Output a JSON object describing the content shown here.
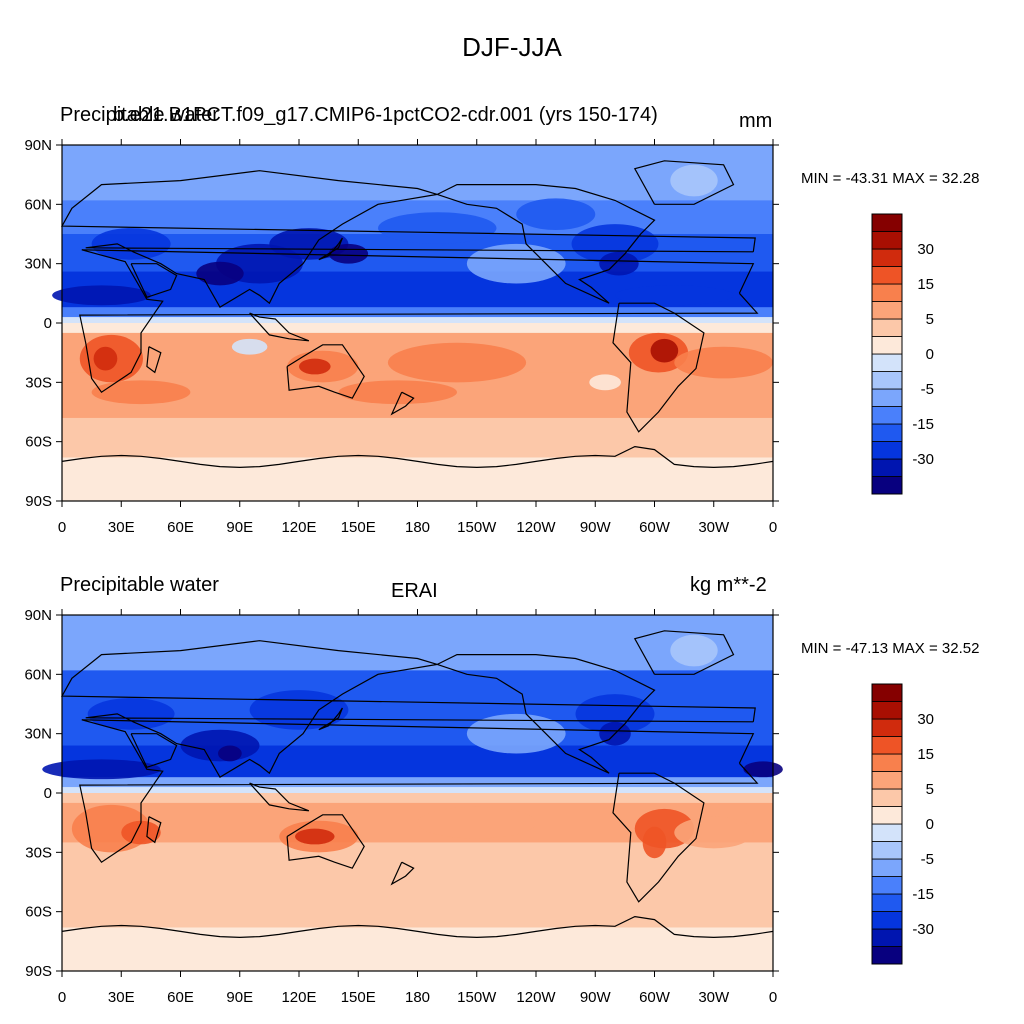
{
  "figure": {
    "title": "DJF-JJA"
  },
  "palette": [
    "#08007f",
    "#0015b0",
    "#0535de",
    "#1f59f0",
    "#4a80fb",
    "#7ba6fc",
    "#a8c6fb",
    "#d3e3fa",
    "#fde9da",
    "#fcc8a9",
    "#fba479",
    "#f8804d",
    "#ee5426",
    "#d02b0d",
    "#a80f02",
    "#850000"
  ],
  "colorbar_levels": [
    "-30",
    "-15",
    "-5",
    "0",
    "5",
    "15",
    "30"
  ],
  "panels": [
    {
      "left_label": "Precipitable water",
      "center_label": "b.e21.B1PCT.f09_g17.CMIP6-1pctCO2-cdr.001 (yrs 150-174)",
      "right_label": "mm",
      "stats": "MIN = -43.31 MAX =  32.28",
      "lat_ticks": [
        "90N",
        "60N",
        "30N",
        "0",
        "30S",
        "60S",
        "90S"
      ],
      "lon_ticks": [
        "0",
        "30E",
        "60E",
        "90E",
        "120E",
        "150E",
        "180",
        "150W",
        "120W",
        "90W",
        "60W",
        "30W",
        "0"
      ]
    },
    {
      "left_label": "Precipitable water",
      "center_label": "ERAI",
      "right_label": "kg m**-2",
      "stats": "MIN = -47.13 MAX =  32.52",
      "lat_ticks": [
        "90N",
        "60N",
        "30N",
        "0",
        "30S",
        "60S",
        "90S"
      ],
      "lon_ticks": [
        "0",
        "30E",
        "60E",
        "90E",
        "120E",
        "150E",
        "180",
        "150W",
        "120W",
        "90W",
        "60W",
        "30W",
        "0"
      ]
    }
  ]
}
